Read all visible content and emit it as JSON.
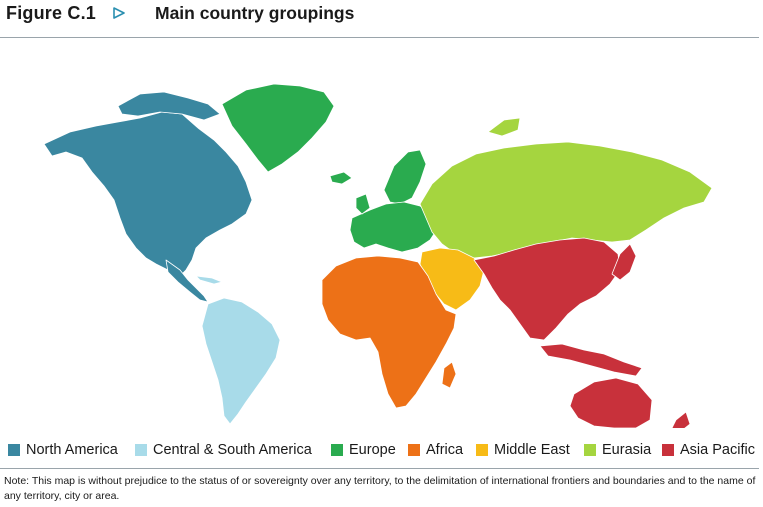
{
  "figure": {
    "label": "Figure C.1",
    "title": "Main country groupings"
  },
  "regions": [
    {
      "id": "north-america",
      "label": "North America",
      "color": "#3a87a0"
    },
    {
      "id": "central-south-america",
      "label": "Central & South America",
      "color": "#a8dbe9"
    },
    {
      "id": "europe",
      "label": "Europe",
      "color": "#2aab4f"
    },
    {
      "id": "africa",
      "label": "Africa",
      "color": "#ed7117"
    },
    {
      "id": "middle-east",
      "label": "Middle East",
      "color": "#f7bb17"
    },
    {
      "id": "eurasia",
      "label": "Eurasia",
      "color": "#a5d53f"
    },
    {
      "id": "asia-pacific",
      "label": "Asia Pacific",
      "color": "#c8313b"
    }
  ],
  "note": "Note: This map is without prejudice to the status of or sovereignty over any territory, to the delimitation of international frontiers and boundaries and to the name of any territory, city or area."
}
